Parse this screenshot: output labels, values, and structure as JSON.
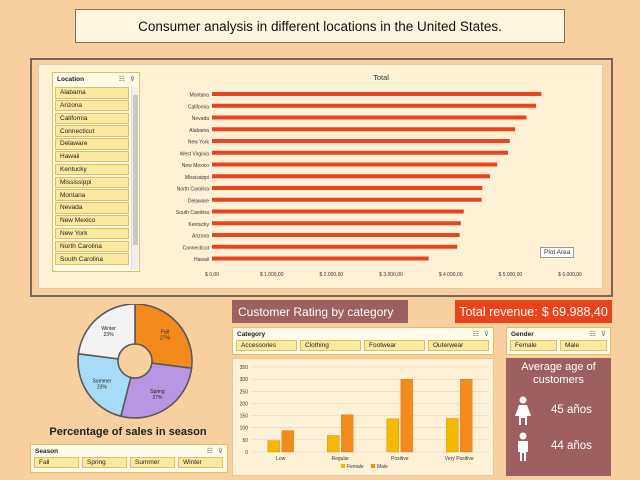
{
  "title": "Consumer analysis in different locations in the United States.",
  "colors": {
    "background": "#f8cf9e",
    "bar": "#e8431c",
    "accent": "#9e5f60",
    "female": "#f5b800",
    "male": "#f38b1c"
  },
  "location_slicer": {
    "header": "Location",
    "items": [
      "Alabama",
      "Arizona",
      "California",
      "Connecticut",
      "Delaware",
      "Hawaii",
      "Kentucky",
      "Mississippi",
      "Montana",
      "Nevada",
      "New Mexico",
      "New York",
      "North Carolina",
      "South Carolina"
    ],
    "icons": [
      "multi-select-icon",
      "clear-filter-icon"
    ]
  },
  "chart_data": [
    {
      "type": "bar",
      "orientation": "horizontal",
      "title": "Total",
      "categories": [
        "Montana",
        "California",
        "Nevada",
        "Alabama",
        "New York",
        "West Virginia",
        "New Mexico",
        "Mississippi",
        "North Carolina",
        "Delaware",
        "South Carolina",
        "Kentucky",
        "Arizona",
        "Connecticut",
        "Hawaii"
      ],
      "values": [
        5520,
        5430,
        5270,
        5080,
        4990,
        4960,
        4780,
        4660,
        4530,
        4520,
        4220,
        4170,
        4150,
        4110,
        3630
      ],
      "xlim": [
        0,
        6000
      ],
      "xticks": [
        "$ 0,00",
        "$ 1.000,00",
        "$ 2.000,00",
        "$ 3.000,00",
        "$ 4.000,00",
        "$ 5.000,00",
        "$ 6.000,00"
      ],
      "xtick_values": [
        0,
        1000,
        2000,
        3000,
        4000,
        5000,
        6000
      ],
      "grid": false
    },
    {
      "type": "bar",
      "categories": [
        "Low",
        "Regular",
        "Positive",
        "Very Positive"
      ],
      "series": [
        {
          "name": "Female",
          "values": [
            47,
            68,
            137,
            138
          ]
        },
        {
          "name": "Male",
          "values": [
            88,
            153,
            300,
            300
          ]
        }
      ],
      "ylim": [
        0,
        350
      ],
      "yticks": [
        "0",
        "50",
        "100",
        "150",
        "200",
        "250",
        "300",
        "350"
      ],
      "ytick_values": [
        0,
        50,
        100,
        150,
        200,
        250,
        300,
        350
      ],
      "legend": "bottom",
      "grid": true
    },
    {
      "type": "pie",
      "subtype": "donut",
      "title": "Percentage of sales in season",
      "slices": [
        {
          "label": "Fall",
          "pct": "27%",
          "value": 27,
          "color": "#f38b1c"
        },
        {
          "label": "Spring",
          "pct": "27%",
          "value": 27,
          "color": "#b896e2"
        },
        {
          "label": "Summer",
          "pct": "23%",
          "value": 23,
          "color": "#a6dcf7"
        },
        {
          "label": "Winter",
          "pct": "23%",
          "value": 23,
          "color": "#f3f1f1"
        }
      ]
    }
  ],
  "plot_area_tooltip": "Plot Area",
  "rating_label": "Customer Rating by category",
  "revenue": {
    "label": "Total revenue:",
    "value": "$ 69.988,40"
  },
  "category_slicer": {
    "header": "Category",
    "items": [
      "Accessories",
      "Clothing",
      "Footwear",
      "Outerwear"
    ]
  },
  "gender_slicer": {
    "header": "Gender",
    "items": [
      "Female",
      "Male"
    ]
  },
  "age_panel": {
    "title": "Average age of customers",
    "female_age": "45 años",
    "male_age": "44 años"
  },
  "season_slicer": {
    "header": "Season",
    "items": [
      "Fall",
      "Spring",
      "Summer",
      "Winter"
    ]
  }
}
